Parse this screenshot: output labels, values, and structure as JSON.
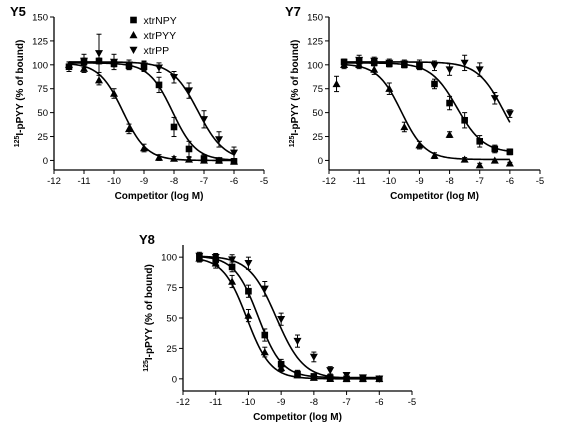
{
  "chart_data": [
    {
      "type": "scatter",
      "title": "Y5",
      "xlabel": "Competitor (log M)",
      "ylabel": "125I-pPYY (% of bound)",
      "ylabel_sup": "125",
      "ylabel_rest": "I-pPYY (% of bound)",
      "xlim": [
        -12,
        -5
      ],
      "ylim": [
        -10,
        150
      ],
      "xticks": [
        -12,
        -11,
        -10,
        -9,
        -8,
        -7,
        -6,
        -5
      ],
      "yticks": [
        0,
        25,
        50,
        75,
        100,
        125,
        150
      ],
      "legend": {
        "position": "top-right",
        "entries": [
          {
            "name": "xtrNPY",
            "marker": "square"
          },
          {
            "name": "xtrPYY",
            "marker": "triangle-up"
          },
          {
            "name": "xtrPP",
            "marker": "triangle-down"
          }
        ]
      },
      "series": [
        {
          "name": "xtrNPY",
          "marker": "square",
          "fit": {
            "top": 102,
            "bottom": 0,
            "logIC50": -8.05,
            "hill": 1.1
          },
          "x": [
            -11.5,
            -11,
            -10.5,
            -10,
            -9.5,
            -9,
            -8.5,
            -8,
            -7.5,
            -7,
            -6.5,
            -6
          ],
          "y": [
            98,
            103,
            104,
            101,
            99,
            98,
            79,
            35,
            12,
            2,
            0,
            -1
          ],
          "err": [
            5,
            4,
            3,
            3,
            4,
            5,
            8,
            10,
            8,
            4,
            2,
            2
          ]
        },
        {
          "name": "xtrPYY",
          "marker": "triangle-up",
          "fit": {
            "top": 102,
            "bottom": 0,
            "logIC50": -9.7,
            "hill": 1.1
          },
          "x": [
            -11.5,
            -11,
            -10.5,
            -10,
            -9.5,
            -9,
            -8.5,
            -8,
            -7.5,
            -7,
            -6.5,
            -6
          ],
          "y": [
            100,
            96,
            84,
            70,
            33,
            13,
            3,
            2,
            1,
            0,
            0,
            -1
          ],
          "err": [
            3,
            4,
            5,
            5,
            5,
            4,
            3,
            2,
            2,
            1,
            1,
            1
          ]
        },
        {
          "name": "xtrPP",
          "marker": "triangle-down",
          "fit": {
            "top": 103,
            "bottom": 0,
            "logIC50": -7.2,
            "hill": 1.0
          },
          "x": [
            -11,
            -10.5,
            -10,
            -9.5,
            -9,
            -8.5,
            -8,
            -7.5,
            -7,
            -6.5,
            -6
          ],
          "y": [
            104,
            112,
            103,
            100,
            99,
            97,
            87,
            73,
            43,
            22,
            8
          ],
          "err": [
            7,
            20,
            8,
            5,
            5,
            5,
            6,
            8,
            9,
            8,
            6
          ]
        }
      ]
    },
    {
      "type": "scatter",
      "title": "Y7",
      "xlabel": "Competitor (log M)",
      "ylabel": "125I-pPYY (% of bound)",
      "ylabel_sup": "125",
      "ylabel_rest": "I-pPYY (% of bound)",
      "xlim": [
        -12,
        -5
      ],
      "ylim": [
        -10,
        150
      ],
      "xticks": [
        -12,
        -11,
        -10,
        -9,
        -8,
        -7,
        -6,
        -5
      ],
      "yticks": [
        0,
        25,
        50,
        75,
        100,
        125,
        150
      ],
      "series": [
        {
          "name": "xtrNPY",
          "marker": "square",
          "fit": {
            "top": 102,
            "bottom": 8,
            "logIC50": -7.75,
            "hill": 1.0
          },
          "x": [
            -11.5,
            -11,
            -10.5,
            -10,
            -9.5,
            -9,
            -8.5,
            -8,
            -7.5,
            -7,
            -6.5,
            -6
          ],
          "y": [
            103,
            104,
            102,
            101,
            100,
            99,
            80,
            60,
            42,
            20,
            12,
            9
          ],
          "err": [
            3,
            3,
            3,
            3,
            3,
            4,
            5,
            7,
            8,
            6,
            4,
            3
          ]
        },
        {
          "name": "xtrPYY",
          "marker": "triangle-up",
          "fit": {
            "top": 101,
            "bottom": 1,
            "logIC50": -9.6,
            "hill": 1.1
          },
          "x": [
            -11.75,
            -11.5,
            -11,
            -10.5,
            -10,
            -9.5,
            -9,
            -8.5,
            -8,
            -7.5,
            -7,
            -6.5,
            -6
          ],
          "y": [
            80,
            100,
            100,
            95,
            75,
            35,
            16,
            5,
            27,
            1,
            -5,
            0,
            -3
          ],
          "err": [
            8,
            4,
            4,
            5,
            6,
            5,
            4,
            3,
            3,
            2,
            2,
            1,
            1
          ]
        },
        {
          "name": "xtrPP",
          "marker": "triangle-down",
          "fit": {
            "top": 103,
            "bottom": 0,
            "logIC50": -6.2,
            "hill": 1.0
          },
          "x": [
            -11,
            -10.5,
            -10,
            -9.5,
            -9,
            -8.5,
            -8,
            -7.5,
            -7,
            -6.5,
            -6
          ],
          "y": [
            105,
            104,
            102,
            101,
            100,
            99,
            95,
            102,
            95,
            65,
            49
          ],
          "err": [
            5,
            4,
            4,
            4,
            5,
            5,
            6,
            8,
            7,
            6,
            4
          ]
        }
      ]
    },
    {
      "type": "scatter",
      "title": "Y8",
      "xlabel": "Competitor (log M)",
      "ylabel": "125I-pPYY (% of bound)",
      "ylabel_sup": "125",
      "ylabel_rest": "I-pPYY (% of bound)",
      "xlim": [
        -12,
        -5
      ],
      "ylim": [
        -10,
        110
      ],
      "xticks": [
        -12,
        -11,
        -10,
        -9,
        -8,
        -7,
        -6,
        -5
      ],
      "yticks": [
        0,
        25,
        50,
        75,
        100
      ],
      "series": [
        {
          "name": "xtrNPY",
          "marker": "square",
          "fit": {
            "top": 101,
            "bottom": 1,
            "logIC50": -9.7,
            "hill": 1.2
          },
          "x": [
            -11.5,
            -11,
            -10.5,
            -10,
            -9.5,
            -9,
            -8.5,
            -8,
            -7.5,
            -7,
            -6.5,
            -6
          ],
          "y": [
            100,
            98,
            92,
            72,
            36,
            12,
            4,
            2,
            1,
            0,
            0,
            0
          ],
          "err": [
            3,
            3,
            4,
            5,
            5,
            4,
            3,
            2,
            1,
            1,
            1,
            1
          ]
        },
        {
          "name": "xtrPYY",
          "marker": "triangle-up",
          "fit": {
            "top": 100,
            "bottom": 0,
            "logIC50": -10.05,
            "hill": 1.2
          },
          "x": [
            -11.5,
            -11,
            -10.5,
            -10,
            -9.5,
            -9,
            -8.5,
            -8,
            -7.5,
            -7,
            -6.5,
            -6
          ],
          "y": [
            99,
            95,
            80,
            52,
            22,
            9,
            3,
            1,
            0,
            0,
            0,
            0
          ],
          "err": [
            3,
            4,
            5,
            5,
            4,
            3,
            2,
            1,
            1,
            1,
            1,
            1
          ]
        },
        {
          "name": "xtrPP",
          "marker": "triangle-down",
          "fit": {
            "top": 101,
            "bottom": 0,
            "logIC50": -9.15,
            "hill": 1.05
          },
          "x": [
            -11.5,
            -11,
            -10.5,
            -10,
            -9.5,
            -9,
            -8.5,
            -8,
            -7.5,
            -7,
            -6.5,
            -6
          ],
          "y": [
            101,
            100,
            98,
            95,
            74,
            49,
            31,
            18,
            7,
            3,
            1,
            0
          ],
          "err": [
            3,
            3,
            4,
            5,
            6,
            5,
            5,
            4,
            3,
            2,
            2,
            1
          ]
        }
      ]
    }
  ]
}
